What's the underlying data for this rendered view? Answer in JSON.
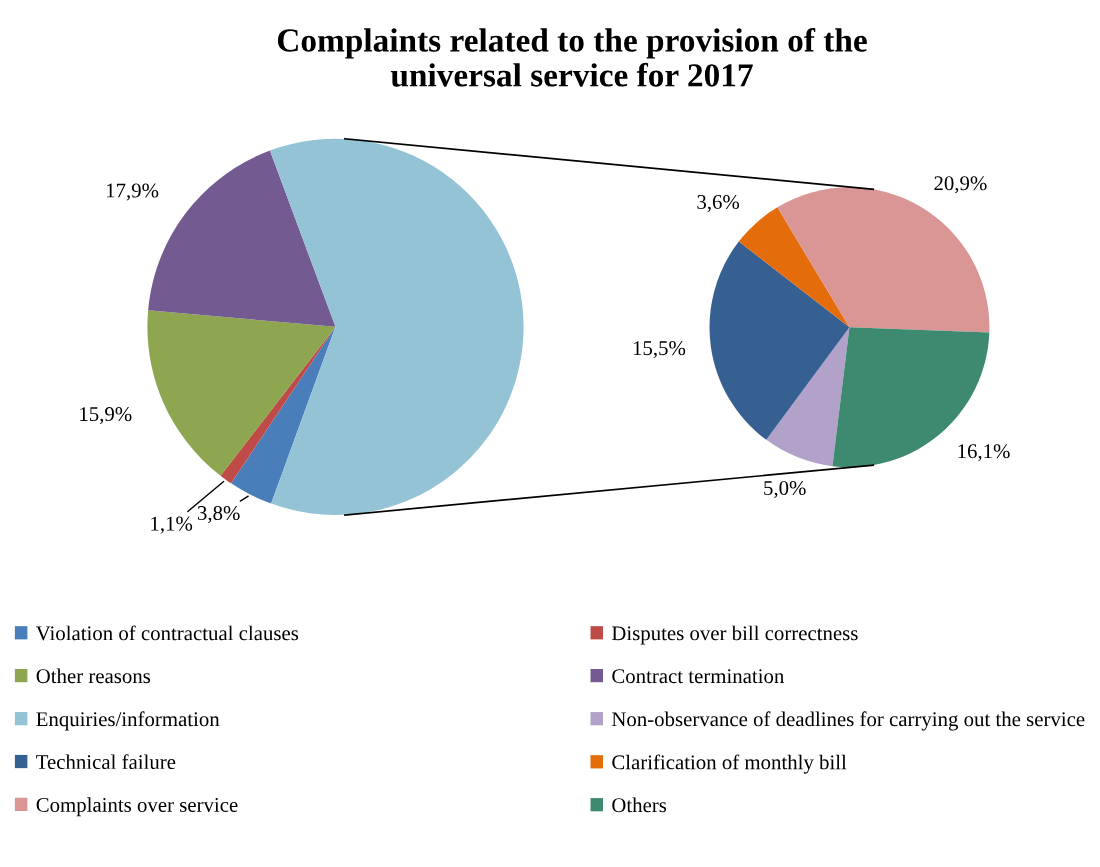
{
  "chart_data": [
    {
      "type": "pie",
      "title": "Complaints related to the provision of the\nuniversal service for 2017",
      "categories": [
        "Violation of contractual clauses",
        "Disputes over bill correctness",
        "Other reasons",
        "Contract termination",
        "Enquiries/information"
      ],
      "values": [
        3.8,
        1.1,
        15.9,
        17.9,
        61.1
      ],
      "colors": [
        "#4a7ebb",
        "#be4b48",
        "#8da64f",
        "#735a91",
        "#93c3d5"
      ],
      "value_labels": [
        "3,8%",
        "1,1%",
        "15,9%",
        "17,9%",
        null
      ],
      "legend": "bottom"
    },
    {
      "type": "pie",
      "categories": [
        "Non-observance of deadlines for carrying out the service",
        "Technical failure",
        "Clarification of monthly bill",
        "Complaints over service",
        "Others"
      ],
      "values": [
        5.0,
        15.5,
        3.6,
        20.9,
        16.1
      ],
      "colors": [
        "#b2a2c9",
        "#376092",
        "#e46c0a",
        "#d99694",
        "#3e8a70"
      ],
      "value_labels": [
        "5,0%",
        "15,5%",
        "3,6%",
        "20,9%",
        "16,1%"
      ],
      "legend": "bottom"
    }
  ]
}
